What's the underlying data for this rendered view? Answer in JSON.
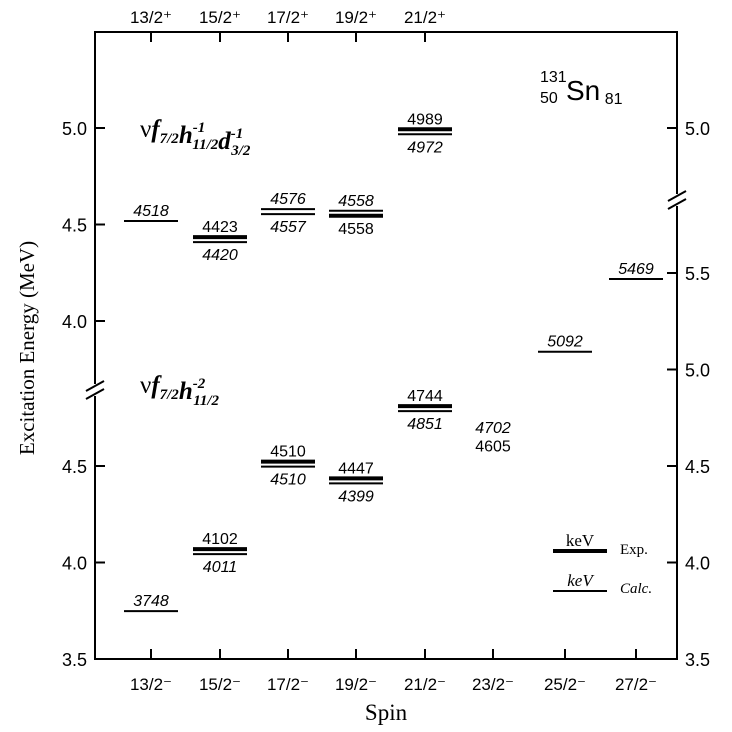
{
  "chart_data": {
    "type": "level_scheme",
    "title": "",
    "nucleus": {
      "mass": "131",
      "proton_number": "50",
      "symbol": "Sn",
      "neutron_number": "81"
    },
    "xlabel": "Spin",
    "ylabel": "Excitation Energy (MeV)",
    "bottom_spins": [
      "13/2⁻",
      "15/2⁻",
      "17/2⁻",
      "19/2⁻",
      "21/2⁻",
      "23/2⁻",
      "25/2⁻",
      "27/2⁻"
    ],
    "top_spins": [
      "13/2⁺",
      "15/2⁺",
      "17/2⁺",
      "19/2⁺",
      "21/2⁺"
    ],
    "left_axis_lower": {
      "ticks": [
        "3.5",
        "4.0",
        "4.5"
      ],
      "range": [
        3.5,
        4.8
      ]
    },
    "left_axis_upper": {
      "ticks": [
        "4.0",
        "4.5",
        "5.0"
      ],
      "range": [
        3.75,
        5.35
      ]
    },
    "right_axis_lower": {
      "ticks": [
        "3.5",
        "4.0",
        "4.5",
        "5.0",
        "5.5"
      ],
      "range": [
        3.5,
        5.97
      ]
    },
    "right_axis_upper": {
      "ticks": [
        "5.0"
      ],
      "range": [
        4.65,
        5.35
      ]
    },
    "config_labels": {
      "upper": {
        "nu": "ν",
        "parts": [
          [
            "f",
            "7/2",
            ""
          ],
          [
            "h",
            "11/2",
            "-1"
          ],
          [
            "d",
            "3/2",
            "-1"
          ]
        ]
      },
      "lower": {
        "nu": "ν",
        "parts": [
          [
            "f",
            "7/2",
            ""
          ],
          [
            "h",
            "11/2",
            "-2"
          ]
        ]
      }
    },
    "levels": [
      {
        "group": "negative",
        "spin": "13/2⁻",
        "energy_keV": 3748,
        "kind": "calc"
      },
      {
        "group": "negative",
        "spin": "15/2⁻",
        "energy_keV": 4102,
        "kind": "exp"
      },
      {
        "group": "negative",
        "spin": "15/2⁻",
        "energy_keV": 4011,
        "kind": "calc"
      },
      {
        "group": "negative",
        "spin": "17/2⁻",
        "energy_keV": 4510,
        "kind": "exp"
      },
      {
        "group": "negative",
        "spin": "17/2⁻",
        "energy_keV": 4510,
        "kind": "calc"
      },
      {
        "group": "negative",
        "spin": "19/2⁻",
        "energy_keV": 4447,
        "kind": "exp"
      },
      {
        "group": "negative",
        "spin": "19/2⁻",
        "energy_keV": 4399,
        "kind": "calc"
      },
      {
        "group": "negative",
        "spin": "21/2⁻",
        "energy_keV": 4744,
        "kind": "exp"
      },
      {
        "group": "negative",
        "spin": "21/2⁻",
        "energy_keV": 4851,
        "kind": "calc"
      },
      {
        "group": "negative",
        "spin": "23/2⁻",
        "energy_keV": 4702,
        "kind": "calc",
        "no_line": true
      },
      {
        "group": "negative",
        "spin": "23/2⁻",
        "energy_keV": 4605,
        "kind": "exp",
        "no_line": true
      },
      {
        "group": "negative",
        "spin": "25/2⁻",
        "energy_keV": 5092,
        "kind": "calc",
        "axis": "right"
      },
      {
        "group": "negative",
        "spin": "27/2⁻",
        "energy_keV": 5469,
        "kind": "calc",
        "axis": "right"
      },
      {
        "group": "positive",
        "spin": "13/2⁺",
        "energy_keV": 4518,
        "kind": "calc"
      },
      {
        "group": "positive",
        "spin": "15/2⁺",
        "energy_keV": 4423,
        "kind": "exp"
      },
      {
        "group": "positive",
        "spin": "15/2⁺",
        "energy_keV": 4420,
        "kind": "calc"
      },
      {
        "group": "positive",
        "spin": "17/2⁺",
        "energy_keV": 4576,
        "kind": "calc"
      },
      {
        "group": "positive",
        "spin": "17/2⁺",
        "energy_keV": 4557,
        "kind": "calc"
      },
      {
        "group": "positive",
        "spin": "19/2⁺",
        "energy_keV": 4558,
        "kind": "calc"
      },
      {
        "group": "positive",
        "spin": "19/2⁺",
        "energy_keV": 4558,
        "kind": "exp"
      },
      {
        "group": "positive",
        "spin": "21/2⁺",
        "energy_keV": 4989,
        "kind": "exp"
      },
      {
        "group": "positive",
        "spin": "21/2⁺",
        "energy_keV": 4972,
        "kind": "calc"
      }
    ],
    "legend": [
      {
        "label": "keV",
        "description": "Exp."
      },
      {
        "label": "keV",
        "description": "Calc."
      }
    ],
    "legend_position": "bottom-right"
  }
}
